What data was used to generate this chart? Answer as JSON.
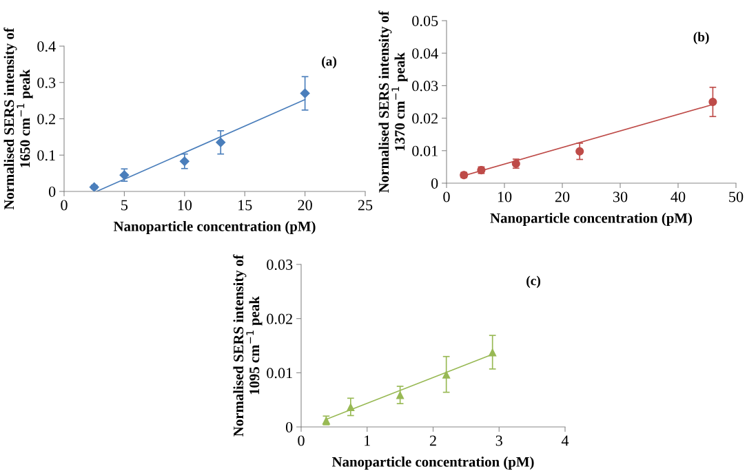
{
  "chart_data": [
    {
      "type": "scatter",
      "annotations": [
        "(a)"
      ],
      "xlabel": "Nanoparticle concentration (pM)",
      "ylabel": "Normalised SERS intensity of\n1650 cm$^{−1}$ peak",
      "xlim": [
        0,
        25
      ],
      "xticks": [
        0,
        5,
        10,
        15,
        20,
        25
      ],
      "ylim": [
        0,
        0.4
      ],
      "yticks": [
        0,
        0.1,
        0.2,
        0.3,
        0.4
      ],
      "grid": false,
      "series": [
        {
          "marker": "diamond",
          "color": "#4a7ebb",
          "x": [
            2.5,
            5,
            10,
            13,
            20
          ],
          "values": [
            0.012,
            0.045,
            0.083,
            0.135,
            0.27
          ],
          "errors": [
            0.005,
            0.017,
            0.02,
            0.032,
            0.046
          ]
        },
        {
          "type": "line",
          "marker": "none",
          "line_style": "solid",
          "color": "#4a7ebb",
          "x": [
            2.7,
            20
          ],
          "values": [
            0,
            0.253
          ]
        }
      ]
    },
    {
      "type": "scatter",
      "annotations": [
        "(b)"
      ],
      "xlabel": "Nanoparticle concentration (pM)",
      "ylabel": "Normalised SERS intensity of\n1370 cm$^{−1}$ peak",
      "xlim": [
        0,
        50
      ],
      "xticks": [
        0,
        10,
        20,
        30,
        40,
        50
      ],
      "ylim": [
        0,
        0.05
      ],
      "yticks": [
        0,
        0.01,
        0.02,
        0.03,
        0.04,
        0.05
      ],
      "grid": false,
      "series": [
        {
          "marker": "circle",
          "color": "#be4b48",
          "x": [
            3,
            6,
            12,
            23,
            46
          ],
          "values": [
            0.0025,
            0.004,
            0.006,
            0.0098,
            0.025
          ],
          "errors": [
            0.0008,
            0.001,
            0.0014,
            0.0025,
            0.0045
          ]
        },
        {
          "type": "line",
          "marker": "none",
          "line_style": "solid",
          "color": "#be4b48",
          "x": [
            3,
            46
          ],
          "values": [
            0.0023,
            0.0242
          ]
        }
      ]
    },
    {
      "type": "scatter",
      "annotations": [
        "(c)"
      ],
      "xlabel": "Nanoparticle concentration (pM)",
      "ylabel": "Normalised SERS intensity of\n1095 cm$^{−1}$ peak",
      "xlim": [
        0,
        4
      ],
      "xticks": [
        0,
        1,
        2,
        3,
        4
      ],
      "ylim": [
        0,
        0.03
      ],
      "yticks": [
        0,
        0.01,
        0.02,
        0.03
      ],
      "grid": false,
      "series": [
        {
          "marker": "triangle",
          "color": "#98b954",
          "x": [
            0.38,
            0.75,
            1.5,
            2.2,
            2.9
          ],
          "values": [
            0.0012,
            0.0037,
            0.0059,
            0.0097,
            0.0138
          ],
          "errors": [
            0.0008,
            0.0016,
            0.0016,
            0.0033,
            0.0031
          ]
        },
        {
          "type": "line",
          "marker": "none",
          "line_style": "solid",
          "color": "#98b954",
          "x": [
            0.38,
            2.9
          ],
          "values": [
            0.0014,
            0.0134
          ]
        }
      ]
    }
  ]
}
